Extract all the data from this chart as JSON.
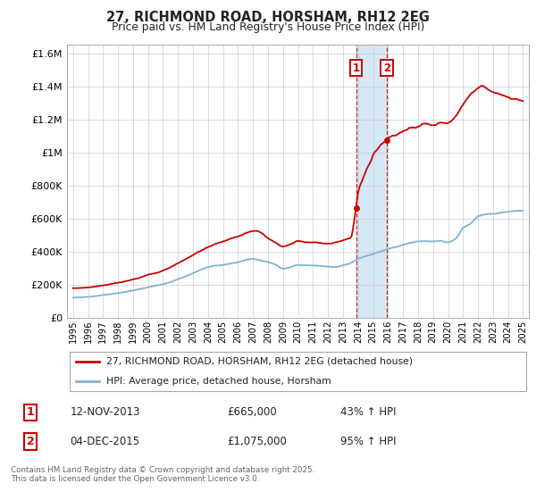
{
  "title": "27, RICHMOND ROAD, HORSHAM, RH12 2EG",
  "subtitle": "Price paid vs. HM Land Registry's House Price Index (HPI)",
  "legend_line1": "27, RICHMOND ROAD, HORSHAM, RH12 2EG (detached house)",
  "legend_line2": "HPI: Average price, detached house, Horsham",
  "annotation1_date": "12-NOV-2013",
  "annotation1_price": "£665,000",
  "annotation1_hpi": "43% ↑ HPI",
  "annotation2_date": "04-DEC-2015",
  "annotation2_price": "£1,075,000",
  "annotation2_hpi": "95% ↑ HPI",
  "footnote": "Contains HM Land Registry data © Crown copyright and database right 2025.\nThis data is licensed under the Open Government Licence v3.0.",
  "red_color": "#cc0000",
  "blue_color": "#7fb3d3",
  "shade_color": "#d6e8f5",
  "vline_color": "#cc0000",
  "ylim": [
    0,
    1650000
  ],
  "yticks": [
    0,
    200000,
    400000,
    600000,
    800000,
    1000000,
    1200000,
    1400000,
    1600000
  ],
  "ytick_labels": [
    "£0",
    "£200K",
    "£400K",
    "£600K",
    "£800K",
    "£1M",
    "£1.2M",
    "£1.4M",
    "£1.6M"
  ],
  "sale1_x": 2013.87,
  "sale1_y": 665000,
  "sale2_x": 2015.92,
  "sale2_y": 1075000,
  "xlim_left": 1994.6,
  "xlim_right": 2025.4
}
